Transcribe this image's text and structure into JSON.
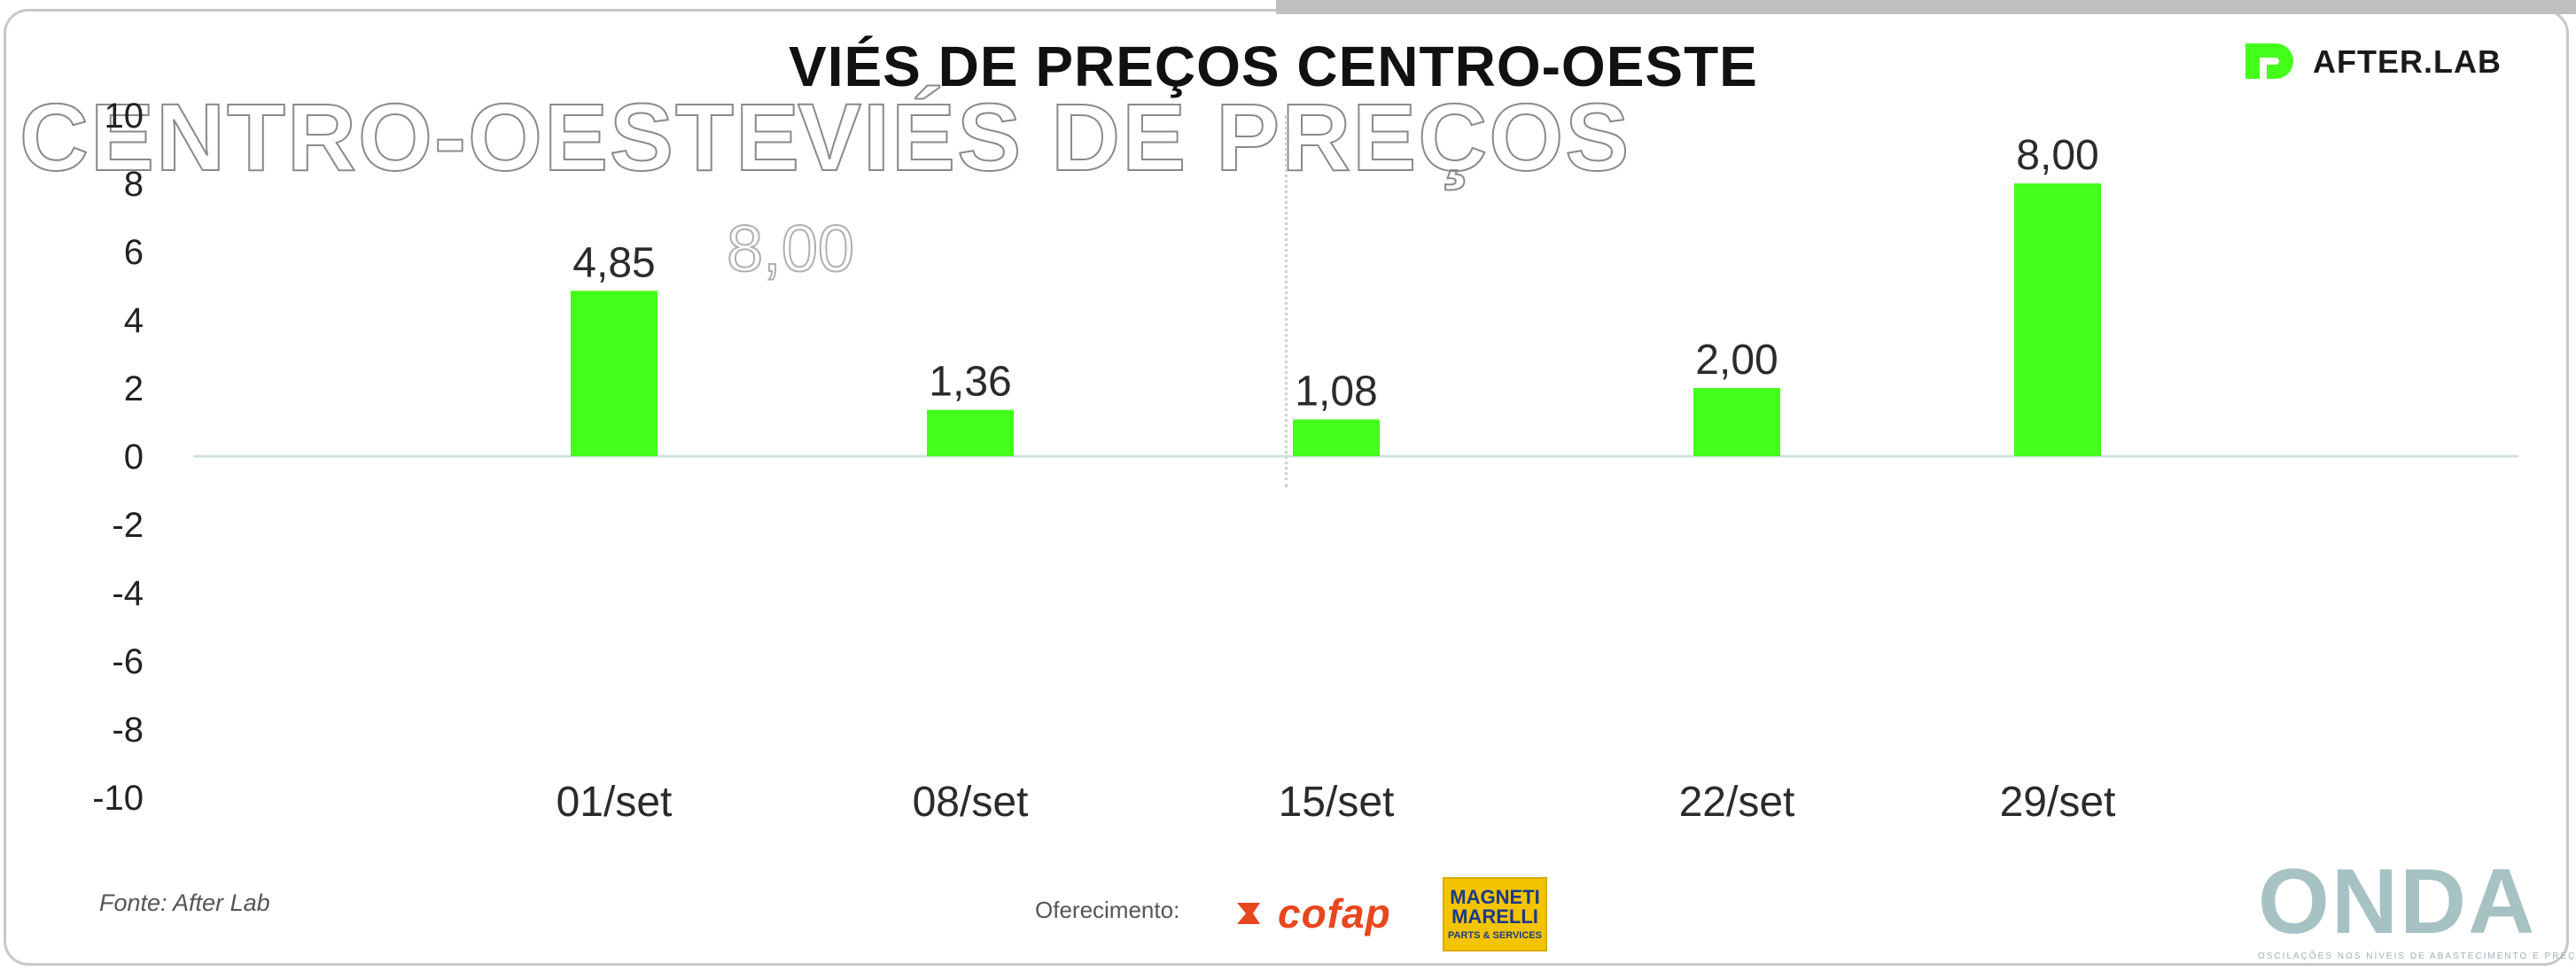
{
  "header": {
    "title": "VIÉS DE PREÇOS CENTRO-OESTE",
    "ghost_left": "CENTRO-OESTE",
    "ghost_right": "VIÉS DE PREÇOS",
    "ghost_value": "8,00"
  },
  "brand": {
    "name": "AFTER.LAB",
    "accent_color": "#44ff1a"
  },
  "chart_data": {
    "type": "bar",
    "title": "VIÉS DE PREÇOS CENTRO-OESTE",
    "categories": [
      "01/set",
      "08/set",
      "15/set",
      "22/set",
      "29/set"
    ],
    "values": [
      4.85,
      1.36,
      1.08,
      2.0,
      8.0
    ],
    "value_labels": [
      "4,85",
      "1,36",
      "1,08",
      "2,00",
      "8,00"
    ],
    "ylim": [
      -10,
      10
    ],
    "yticks": [
      10,
      8,
      6,
      4,
      2,
      0,
      -2,
      -4,
      -6,
      -8,
      -10
    ],
    "xlabel": "",
    "ylabel": "",
    "grid": false,
    "bar_color": "#44ff1a",
    "zero_line_color": "#cfe3df"
  },
  "footer": {
    "source": "Fonte: After Lab",
    "sponsors_label": "Oferecimento:",
    "cofap": "cofap",
    "magneti_top": "MAGNETI",
    "magneti_mid": "MARELLI",
    "magneti_sub": "PARTS & SERVICES",
    "onda_word": "ONDA",
    "onda_sub": "OSCILAÇÕES NOS NÍVEIS DE ABASTECIMENTO E PREÇOS"
  }
}
